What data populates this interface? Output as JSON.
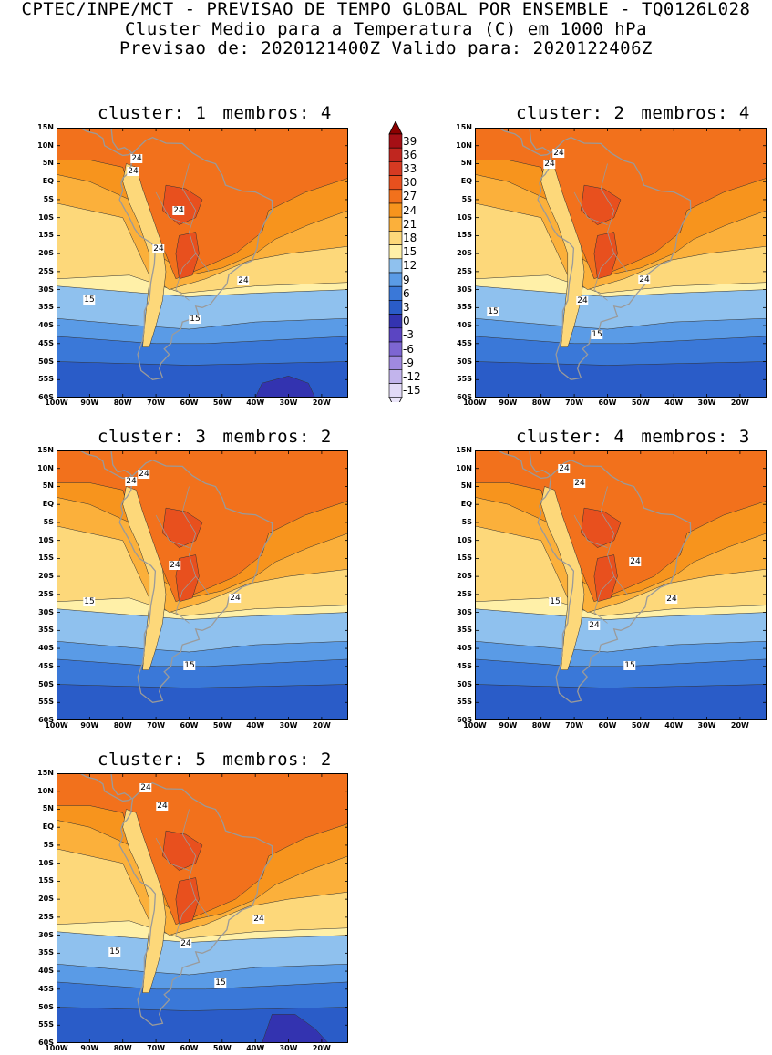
{
  "header": {
    "line1": "CPTEC/INPE/MCT - PREVISAO DE TEMPO GLOBAL POR ENSEMBLE - TQ0126L028",
    "line2": "Cluster Medio para a Temperatura (C) em 1000 hPa",
    "line3": "Previsao de: 2020121400Z   Valido para: 2020122406Z"
  },
  "lat_ticks": [
    "15N",
    "10N",
    "5N",
    "EQ",
    "5S",
    "10S",
    "15S",
    "20S",
    "25S",
    "30S",
    "35S",
    "40S",
    "45S",
    "50S",
    "55S",
    "60S"
  ],
  "lon_ticks": [
    "100W",
    "90W",
    "80W",
    "70W",
    "60W",
    "50W",
    "40W",
    "30W",
    "20W"
  ],
  "colorbar": {
    "levels": [
      "39",
      "36",
      "33",
      "30",
      "27",
      "24",
      "21",
      "18",
      "15",
      "12",
      "9",
      "6",
      "3",
      "0",
      "-3",
      "-6",
      "-9",
      "-12",
      "-15"
    ],
    "colors": [
      "#a50f15",
      "#c0261f",
      "#d63a22",
      "#e8501e",
      "#f2711c",
      "#f7941d",
      "#fbb03b",
      "#fdd87a",
      "#fff0a8",
      "#8fc1ee",
      "#5a9be6",
      "#3a78d8",
      "#2a5cc8",
      "#3333b0",
      "#5b45c2",
      "#7d66d2",
      "#a08ae0",
      "#c2b4ec",
      "#e2daf7"
    ],
    "top_arrow_color": "#8b0000",
    "bottom_arrow_color": "#ece6fa"
  },
  "panels": [
    {
      "label": "cluster:",
      "num": "1",
      "members_label": "membros:",
      "members": "4",
      "contours": [
        {
          "text": "24",
          "x": 88,
          "y": 34
        },
        {
          "text": "24",
          "x": 84,
          "y": 48
        },
        {
          "text": "24",
          "x": 134,
          "y": 91
        },
        {
          "text": "24",
          "x": 112,
          "y": 133
        },
        {
          "text": "24",
          "x": 205,
          "y": 168
        },
        {
          "text": "15",
          "x": 36,
          "y": 189
        },
        {
          "text": "15",
          "x": 152,
          "y": 210
        }
      ]
    },
    {
      "label": "cluster:",
      "num": "2",
      "members_label": "membros:",
      "members": "4",
      "contours": [
        {
          "text": "24",
          "x": 92,
          "y": 28
        },
        {
          "text": "24",
          "x": 82,
          "y": 40
        },
        {
          "text": "24",
          "x": 186,
          "y": 167
        },
        {
          "text": "24",
          "x": 118,
          "y": 190
        },
        {
          "text": "15",
          "x": 20,
          "y": 202
        },
        {
          "text": "15",
          "x": 134,
          "y": 227
        }
      ]
    },
    {
      "label": "cluster:",
      "num": "3",
      "members_label": "membros:",
      "members": "2",
      "contours": [
        {
          "text": "24",
          "x": 96,
          "y": 26
        },
        {
          "text": "24",
          "x": 82,
          "y": 34
        },
        {
          "text": "24",
          "x": 130,
          "y": 126
        },
        {
          "text": "24",
          "x": 196,
          "y": 162
        },
        {
          "text": "15",
          "x": 36,
          "y": 166
        },
        {
          "text": "15",
          "x": 146,
          "y": 236
        }
      ]
    },
    {
      "label": "cluster:",
      "num": "4",
      "members_label": "membros:",
      "members": "3",
      "contours": [
        {
          "text": "24",
          "x": 98,
          "y": 20
        },
        {
          "text": "24",
          "x": 115,
          "y": 36
        },
        {
          "text": "24",
          "x": 176,
          "y": 122
        },
        {
          "text": "24",
          "x": 216,
          "y": 163
        },
        {
          "text": "15",
          "x": 88,
          "y": 166
        },
        {
          "text": "24",
          "x": 131,
          "y": 192
        },
        {
          "text": "15",
          "x": 170,
          "y": 236
        }
      ]
    },
    {
      "label": "cluster:",
      "num": "5",
      "members_label": "membros:",
      "members": "2",
      "contours": [
        {
          "text": "24",
          "x": 98,
          "y": 16
        },
        {
          "text": "24",
          "x": 116,
          "y": 36
        },
        {
          "text": "24",
          "x": 222,
          "y": 160
        },
        {
          "text": "24",
          "x": 142,
          "y": 187
        },
        {
          "text": "15",
          "x": 64,
          "y": 196
        },
        {
          "text": "15",
          "x": 180,
          "y": 230
        }
      ]
    }
  ]
}
